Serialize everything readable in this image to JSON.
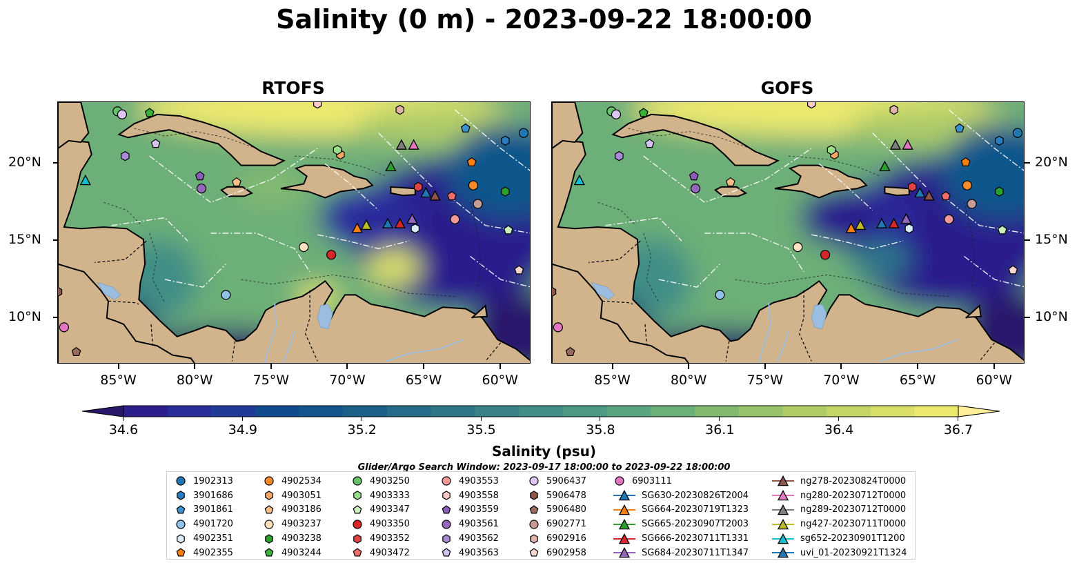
{
  "title": "Salinity (0 m) - 2023-09-22 18:00:00",
  "panels": [
    {
      "title": "RTOFS"
    },
    {
      "title": "GOFS"
    }
  ],
  "axes": {
    "lon_ticks": [
      "85°W",
      "80°W",
      "75°W",
      "70°W",
      "65°W",
      "60°W"
    ],
    "lat_ticks": [
      "20°N",
      "15°N",
      "10°N"
    ],
    "lon_range": [
      -89,
      -58
    ],
    "lat_range": [
      7,
      24
    ]
  },
  "colorbar": {
    "label": "Salinity (psu)",
    "ticks": [
      "34.6",
      "34.9",
      "35.2",
      "35.5",
      "35.8",
      "36.1",
      "36.4",
      "36.7"
    ],
    "range": [
      34.6,
      36.7
    ],
    "extend": "both",
    "colormap": "haline",
    "colors": [
      "#2a186c",
      "#2c1e8c",
      "#2b2c9c",
      "#1f3a97",
      "#124a8e",
      "#11568c",
      "#1a618a",
      "#246c89",
      "#2e7789",
      "#388288",
      "#418e86",
      "#4c9984",
      "#5aa47f",
      "#6daf78",
      "#82b971",
      "#98c36b",
      "#afcc67",
      "#c5d565",
      "#d9df67",
      "#ece96e",
      "#fdef9a"
    ]
  },
  "search_window": "Glider/Argo Search Window: 2023-09-17 18:00:00 to 2023-09-22 18:00:00",
  "legend": {
    "columns": [
      [
        {
          "label": "1902313",
          "marker": "circle",
          "color": "#1f77b4"
        },
        {
          "label": "3901686",
          "marker": "hexagon",
          "color": "#2a7ec0"
        },
        {
          "label": "3901861",
          "marker": "pentagon",
          "color": "#3a93cf"
        },
        {
          "label": "4901720",
          "marker": "circle",
          "color": "#8fc0e6"
        },
        {
          "label": "4902351",
          "marker": "hexagon",
          "color": "#d8ecf8"
        },
        {
          "label": "4902355",
          "marker": "pentagon",
          "color": "#ff7f0e"
        }
      ],
      [
        {
          "label": "4902534",
          "marker": "circle",
          "color": "#f58b2c"
        },
        {
          "label": "4903051",
          "marker": "hexagon",
          "color": "#f9a868"
        },
        {
          "label": "4903186",
          "marker": "pentagon",
          "color": "#f9bd8a"
        },
        {
          "label": "4903237",
          "marker": "circle",
          "color": "#fde1c0"
        },
        {
          "label": "4903238",
          "marker": "hexagon",
          "color": "#2ca02c"
        },
        {
          "label": "4903244",
          "marker": "pentagon",
          "color": "#3aaf3a"
        }
      ],
      [
        {
          "label": "4903250",
          "marker": "circle",
          "color": "#66c266"
        },
        {
          "label": "4903333",
          "marker": "hexagon",
          "color": "#98df8a"
        },
        {
          "label": "4903347",
          "marker": "pentagon",
          "color": "#c9f0bd"
        },
        {
          "label": "4903350",
          "marker": "circle",
          "color": "#d62728"
        },
        {
          "label": "4903352",
          "marker": "hexagon",
          "color": "#e04545"
        },
        {
          "label": "4903472",
          "marker": "pentagon",
          "color": "#f26c6c"
        }
      ],
      [
        {
          "label": "4903553",
          "marker": "circle",
          "color": "#f29a9a"
        },
        {
          "label": "4903558",
          "marker": "hexagon",
          "color": "#fbc9c9"
        },
        {
          "label": "4903559",
          "marker": "pentagon",
          "color": "#8a5cb8"
        },
        {
          "label": "4903561",
          "marker": "circle",
          "color": "#9467bd"
        },
        {
          "label": "4903562",
          "marker": "hexagon",
          "color": "#a98bd6"
        },
        {
          "label": "4903563",
          "marker": "pentagon",
          "color": "#d2c2ef"
        }
      ],
      [
        {
          "label": "5906437",
          "marker": "circle",
          "color": "#dcc6f3"
        },
        {
          "label": "5906478",
          "marker": "hexagon",
          "color": "#8c564b"
        },
        {
          "label": "5906480",
          "marker": "pentagon",
          "color": "#9a6a5e"
        },
        {
          "label": "6902771",
          "marker": "circle",
          "color": "#c49c94"
        },
        {
          "label": "6902916",
          "marker": "hexagon",
          "color": "#e0b3a8"
        },
        {
          "label": "6902958",
          "marker": "pentagon",
          "color": "#f7d9d2"
        }
      ],
      [
        {
          "label": "6903111",
          "marker": "circle",
          "color": "#e377c2"
        },
        {
          "label": "SG630-20230826T2004",
          "marker": "triangle-line",
          "color": "#1f77b4"
        },
        {
          "label": "SG664-20230719T1323",
          "marker": "triangle-line",
          "color": "#ff7f0e"
        },
        {
          "label": "SG665-20230907T2003",
          "marker": "triangle-line",
          "color": "#2ca02c"
        },
        {
          "label": "SG666-20230711T1331",
          "marker": "triangle-line",
          "color": "#d62728"
        },
        {
          "label": "SG684-20230711T1347",
          "marker": "triangle-line",
          "color": "#9467bd"
        }
      ],
      [
        {
          "label": "ng278-20230824T0000",
          "marker": "triangle-line",
          "color": "#8c564b"
        },
        {
          "label": "ng280-20230712T0000",
          "marker": "triangle-line",
          "color": "#e377c2"
        },
        {
          "label": "ng289-20230712T0000",
          "marker": "triangle-line",
          "color": "#7f7f7f"
        },
        {
          "label": "ng427-20230711T0000",
          "marker": "triangle-line",
          "color": "#bcbd22"
        },
        {
          "label": "sg652-20230901T1200",
          "marker": "triangle-line",
          "color": "#17becf"
        },
        {
          "label": "uvi_01-20230921T1324",
          "marker": "triangle-line",
          "color": "#1f77b4"
        }
      ]
    ]
  },
  "map_markers": [
    {
      "id": "1902313",
      "lon": -58.5,
      "lat": 22.0
    },
    {
      "id": "3901686",
      "lon": -59.7,
      "lat": 21.5
    },
    {
      "id": "3901861",
      "lon": -62.3,
      "lat": 22.3
    },
    {
      "id": "4901720",
      "lon": -78.0,
      "lat": 11.5
    },
    {
      "id": "4902351",
      "lon": -65.6,
      "lat": 15.8
    },
    {
      "id": "4902355",
      "lon": -61.9,
      "lat": 20.1
    },
    {
      "id": "4902534",
      "lon": -61.8,
      "lat": 18.6
    },
    {
      "id": "4903051",
      "lon": -70.5,
      "lat": 20.6
    },
    {
      "id": "4903186",
      "lon": -77.3,
      "lat": 18.8
    },
    {
      "id": "4903237",
      "lon": -72.9,
      "lat": 14.6
    },
    {
      "id": "4903238",
      "lon": -59.7,
      "lat": 18.2
    },
    {
      "id": "4903244",
      "lon": -83.0,
      "lat": 23.3
    },
    {
      "id": "4903250",
      "lon": -85.1,
      "lat": 23.4
    },
    {
      "id": "4903333",
      "lon": -70.7,
      "lat": 20.9
    },
    {
      "id": "4903347",
      "lon": -59.5,
      "lat": 15.7
    },
    {
      "id": "4903350",
      "lon": -71.1,
      "lat": 14.1
    },
    {
      "id": "4903352",
      "lon": -65.4,
      "lat": 18.5
    },
    {
      "id": "4903472",
      "lon": -63.2,
      "lat": 17.9
    },
    {
      "id": "4903553",
      "lon": -63.0,
      "lat": 16.4
    },
    {
      "id": "4903558",
      "lon": -72.0,
      "lat": 23.9
    },
    {
      "id": "4903559",
      "lon": -79.7,
      "lat": 19.2
    },
    {
      "id": "4903561",
      "lon": -79.6,
      "lat": 18.4
    },
    {
      "id": "4903562",
      "lon": -84.6,
      "lat": 20.5
    },
    {
      "id": "4903563",
      "lon": -82.6,
      "lat": 21.3
    },
    {
      "id": "5906437",
      "lon": -84.8,
      "lat": 23.2
    },
    {
      "id": "5906478",
      "lon": -89.0,
      "lat": 11.7
    },
    {
      "id": "5906480",
      "lon": -87.8,
      "lat": 7.8
    },
    {
      "id": "6902771",
      "lon": -61.5,
      "lat": 17.4
    },
    {
      "id": "6902916",
      "lon": -66.6,
      "lat": 23.5
    },
    {
      "id": "6902958",
      "lon": -58.8,
      "lat": 13.1
    },
    {
      "id": "6903111",
      "lon": -88.6,
      "lat": 9.4
    }
  ],
  "map_gliders": [
    {
      "id": "SG630-20230826T2004",
      "lon": -67.4,
      "lat": 16.1
    },
    {
      "id": "SG664-20230719T1323",
      "lon": -69.4,
      "lat": 15.8
    },
    {
      "id": "SG665-20230907T2003",
      "lon": -67.2,
      "lat": 19.8
    },
    {
      "id": "SG666-20230711T1331",
      "lon": -66.6,
      "lat": 16.1
    },
    {
      "id": "SG684-20230711T1347",
      "lon": -65.8,
      "lat": 16.4
    },
    {
      "id": "ng278-20230824T0000",
      "lon": -64.3,
      "lat": 17.9
    },
    {
      "id": "ng280-20230712T0000",
      "lon": -65.7,
      "lat": 21.2
    },
    {
      "id": "ng289-20230712T0000",
      "lon": -66.5,
      "lat": 21.2
    },
    {
      "id": "ng427-20230711T0000",
      "lon": -68.8,
      "lat": 16.0
    },
    {
      "id": "sg652-20230901T1200",
      "lon": -87.2,
      "lat": 18.9
    },
    {
      "id": "uvi_01-20230921T1324",
      "lon": -64.9,
      "lat": 18.1
    }
  ]
}
